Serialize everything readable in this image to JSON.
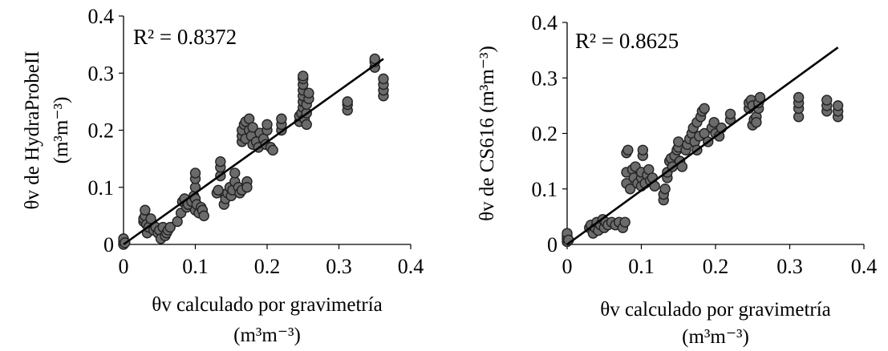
{
  "chart_data": [
    {
      "type": "scatter",
      "xlabel_line1": "θv calculado por gravimetría",
      "xlabel_line2": "(m³m⁻³)",
      "ylabel_line1": "θv de HydraProbeII",
      "ylabel_line2": "(m³m⁻³)",
      "annotation": "R² = 0.8372",
      "xlim": [
        0,
        0.4
      ],
      "ylim": [
        0,
        0.4
      ],
      "xticks": [
        "0",
        "0.1",
        "0.2",
        "0.3",
        "0.4"
      ],
      "yticks": [
        "0",
        "0.1",
        "0.2",
        "0.3",
        "0.4"
      ],
      "grid": false,
      "marker_fill": "#6b6b6b",
      "marker_edge": "#222222",
      "trendline": {
        "x": [
          0,
          0.362
        ],
        "y": [
          0,
          0.325
        ]
      },
      "points": [
        [
          0.0,
          0.0
        ],
        [
          0.0,
          0.005
        ],
        [
          0.0,
          0.01
        ],
        [
          0.002,
          0.003
        ],
        [
          0.028,
          0.04
        ],
        [
          0.028,
          0.045
        ],
        [
          0.03,
          0.05
        ],
        [
          0.03,
          0.06
        ],
        [
          0.032,
          0.035
        ],
        [
          0.033,
          0.02
        ],
        [
          0.035,
          0.03
        ],
        [
          0.038,
          0.045
        ],
        [
          0.042,
          0.025
        ],
        [
          0.045,
          0.03
        ],
        [
          0.048,
          0.02
        ],
        [
          0.05,
          0.025
        ],
        [
          0.052,
          0.01
        ],
        [
          0.055,
          0.03
        ],
        [
          0.058,
          0.015
        ],
        [
          0.06,
          0.02
        ],
        [
          0.062,
          0.025
        ],
        [
          0.065,
          0.03
        ],
        [
          0.075,
          0.04
        ],
        [
          0.08,
          0.055
        ],
        [
          0.082,
          0.075
        ],
        [
          0.085,
          0.08
        ],
        [
          0.088,
          0.065
        ],
        [
          0.09,
          0.07
        ],
        [
          0.095,
          0.075
        ],
        [
          0.098,
          0.085
        ],
        [
          0.1,
          0.06
        ],
        [
          0.1,
          0.08
        ],
        [
          0.1,
          0.1
        ],
        [
          0.1,
          0.115
        ],
        [
          0.1,
          0.125
        ],
        [
          0.102,
          0.07
        ],
        [
          0.105,
          0.055
        ],
        [
          0.108,
          0.065
        ],
        [
          0.11,
          0.06
        ],
        [
          0.112,
          0.05
        ],
        [
          0.13,
          0.09
        ],
        [
          0.132,
          0.095
        ],
        [
          0.135,
          0.12
        ],
        [
          0.135,
          0.135
        ],
        [
          0.135,
          0.145
        ],
        [
          0.14,
          0.07
        ],
        [
          0.142,
          0.08
        ],
        [
          0.145,
          0.09
        ],
        [
          0.148,
          0.1
        ],
        [
          0.15,
          0.085
        ],
        [
          0.152,
          0.095
        ],
        [
          0.155,
          0.11
        ],
        [
          0.155,
          0.125
        ],
        [
          0.16,
          0.1
        ],
        [
          0.162,
          0.09
        ],
        [
          0.165,
          0.095
        ],
        [
          0.165,
          0.18
        ],
        [
          0.165,
          0.19
        ],
        [
          0.165,
          0.2
        ],
        [
          0.168,
          0.21
        ],
        [
          0.17,
          0.185
        ],
        [
          0.17,
          0.215
        ],
        [
          0.172,
          0.11
        ],
        [
          0.172,
          0.1
        ],
        [
          0.175,
          0.22
        ],
        [
          0.175,
          0.2
        ],
        [
          0.178,
          0.19
        ],
        [
          0.18,
          0.205
        ],
        [
          0.18,
          0.175
        ],
        [
          0.185,
          0.18
        ],
        [
          0.188,
          0.17
        ],
        [
          0.19,
          0.195
        ],
        [
          0.195,
          0.185
        ],
        [
          0.198,
          0.175
        ],
        [
          0.2,
          0.2
        ],
        [
          0.2,
          0.21
        ],
        [
          0.205,
          0.17
        ],
        [
          0.208,
          0.165
        ],
        [
          0.22,
          0.2
        ],
        [
          0.22,
          0.21
        ],
        [
          0.22,
          0.22
        ],
        [
          0.245,
          0.215
        ],
        [
          0.245,
          0.225
        ],
        [
          0.248,
          0.23
        ],
        [
          0.25,
          0.24
        ],
        [
          0.25,
          0.25
        ],
        [
          0.25,
          0.26
        ],
        [
          0.25,
          0.27
        ],
        [
          0.25,
          0.28
        ],
        [
          0.25,
          0.29
        ],
        [
          0.25,
          0.295
        ],
        [
          0.252,
          0.22
        ],
        [
          0.255,
          0.21
        ],
        [
          0.255,
          0.23
        ],
        [
          0.255,
          0.245
        ],
        [
          0.258,
          0.255
        ],
        [
          0.258,
          0.265
        ],
        [
          0.312,
          0.235
        ],
        [
          0.312,
          0.245
        ],
        [
          0.312,
          0.25
        ],
        [
          0.35,
          0.31
        ],
        [
          0.35,
          0.32
        ],
        [
          0.35,
          0.325
        ],
        [
          0.362,
          0.26
        ],
        [
          0.362,
          0.27
        ],
        [
          0.362,
          0.28
        ],
        [
          0.362,
          0.29
        ]
      ]
    },
    {
      "type": "scatter",
      "xlabel_line1": "θv calculado por gravimetría",
      "xlabel_line2": "(m³m⁻³)",
      "ylabel_line1": "θv de CS616 (m³m⁻³)",
      "ylabel_line2": "",
      "annotation": "R² = 0.8625",
      "xlim": [
        0,
        0.4
      ],
      "ylim": [
        0,
        0.4
      ],
      "xticks": [
        "0",
        "0.1",
        "0.2",
        "0.3",
        "0.4"
      ],
      "yticks": [
        "0",
        "0.1",
        "0.2",
        "0.3",
        "0.4"
      ],
      "grid": false,
      "marker_fill": "#6b6b6b",
      "marker_edge": "#222222",
      "trendline": {
        "x": [
          0,
          0.365
        ],
        "y": [
          0,
          0.355
        ]
      },
      "points": [
        [
          0.0,
          0.005
        ],
        [
          0.0,
          0.01
        ],
        [
          0.0,
          0.015
        ],
        [
          0.0,
          0.02
        ],
        [
          0.002,
          0.008
        ],
        [
          0.03,
          0.03
        ],
        [
          0.032,
          0.035
        ],
        [
          0.035,
          0.02
        ],
        [
          0.038,
          0.03
        ],
        [
          0.04,
          0.04
        ],
        [
          0.042,
          0.025
        ],
        [
          0.045,
          0.035
        ],
        [
          0.048,
          0.045
        ],
        [
          0.05,
          0.03
        ],
        [
          0.052,
          0.04
        ],
        [
          0.055,
          0.035
        ],
        [
          0.06,
          0.04
        ],
        [
          0.065,
          0.035
        ],
        [
          0.07,
          0.04
        ],
        [
          0.075,
          0.03
        ],
        [
          0.078,
          0.04
        ],
        [
          0.08,
          0.11
        ],
        [
          0.08,
          0.13
        ],
        [
          0.08,
          0.165
        ],
        [
          0.082,
          0.17
        ],
        [
          0.085,
          0.1
        ],
        [
          0.088,
          0.135
        ],
        [
          0.09,
          0.12
        ],
        [
          0.092,
          0.14
        ],
        [
          0.095,
          0.11
        ],
        [
          0.1,
          0.105
        ],
        [
          0.1,
          0.12
        ],
        [
          0.1,
          0.13
        ],
        [
          0.102,
          0.16
        ],
        [
          0.102,
          0.17
        ],
        [
          0.105,
          0.11
        ],
        [
          0.108,
          0.125
        ],
        [
          0.11,
          0.135
        ],
        [
          0.112,
          0.115
        ],
        [
          0.115,
          0.12
        ],
        [
          0.118,
          0.105
        ],
        [
          0.13,
          0.08
        ],
        [
          0.13,
          0.09
        ],
        [
          0.132,
          0.1
        ],
        [
          0.135,
          0.12
        ],
        [
          0.135,
          0.13
        ],
        [
          0.138,
          0.15
        ],
        [
          0.14,
          0.155
        ],
        [
          0.142,
          0.14
        ],
        [
          0.145,
          0.16
        ],
        [
          0.148,
          0.17
        ],
        [
          0.15,
          0.175
        ],
        [
          0.15,
          0.185
        ],
        [
          0.152,
          0.15
        ],
        [
          0.155,
          0.14
        ],
        [
          0.16,
          0.17
        ],
        [
          0.162,
          0.18
        ],
        [
          0.165,
          0.19
        ],
        [
          0.168,
          0.2
        ],
        [
          0.17,
          0.21
        ],
        [
          0.172,
          0.185
        ],
        [
          0.175,
          0.17
        ],
        [
          0.175,
          0.22
        ],
        [
          0.178,
          0.195
        ],
        [
          0.18,
          0.23
        ],
        [
          0.182,
          0.24
        ],
        [
          0.185,
          0.245
        ],
        [
          0.185,
          0.2
        ],
        [
          0.19,
          0.185
        ],
        [
          0.195,
          0.21
        ],
        [
          0.198,
          0.22
        ],
        [
          0.2,
          0.2
        ],
        [
          0.205,
          0.195
        ],
        [
          0.208,
          0.21
        ],
        [
          0.22,
          0.225
        ],
        [
          0.22,
          0.235
        ],
        [
          0.245,
          0.245
        ],
        [
          0.245,
          0.255
        ],
        [
          0.248,
          0.26
        ],
        [
          0.25,
          0.25
        ],
        [
          0.25,
          0.215
        ],
        [
          0.252,
          0.225
        ],
        [
          0.255,
          0.23
        ],
        [
          0.255,
          0.22
        ],
        [
          0.258,
          0.245
        ],
        [
          0.258,
          0.255
        ],
        [
          0.26,
          0.265
        ],
        [
          0.312,
          0.23
        ],
        [
          0.312,
          0.245
        ],
        [
          0.312,
          0.255
        ],
        [
          0.312,
          0.265
        ],
        [
          0.35,
          0.24
        ],
        [
          0.35,
          0.25
        ],
        [
          0.35,
          0.26
        ],
        [
          0.365,
          0.23
        ],
        [
          0.365,
          0.24
        ],
        [
          0.365,
          0.25
        ]
      ]
    }
  ]
}
